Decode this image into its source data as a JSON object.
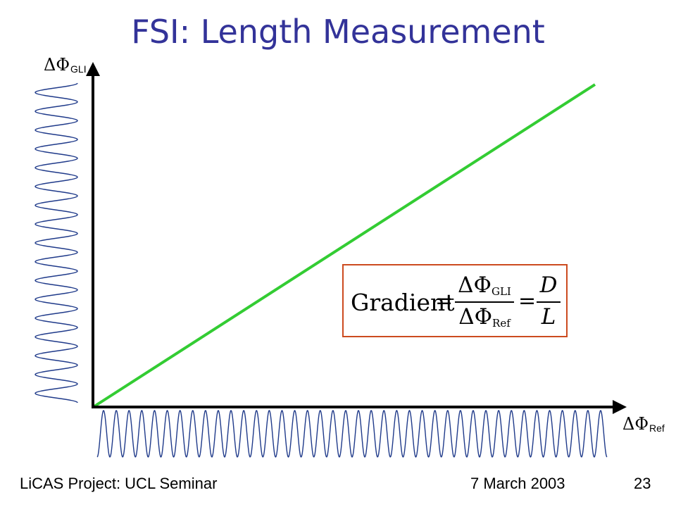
{
  "title": "FSI: Length Measurement",
  "axes": {
    "y": {
      "symbol": "ΔΦ",
      "subscript": "GLI"
    },
    "x": {
      "symbol": "ΔΦ",
      "subscript": "Ref"
    }
  },
  "formula": {
    "lhs": "Gradient",
    "equals": "=",
    "fraction1": {
      "numerator": "ΔΦ",
      "numerator_sub": "GLI",
      "denominator": "ΔΦ",
      "denominator_sub": "Ref"
    },
    "fraction2": {
      "numerator": "D",
      "denominator": "L"
    }
  },
  "colors": {
    "title": "#333399",
    "line": "#33cc33",
    "wave": "#1f3a8a",
    "box_border": "#cc4b1f"
  },
  "footer": {
    "left": "LiCAS Project: UCL Seminar",
    "date": "7 March 2003",
    "page": "23"
  }
}
